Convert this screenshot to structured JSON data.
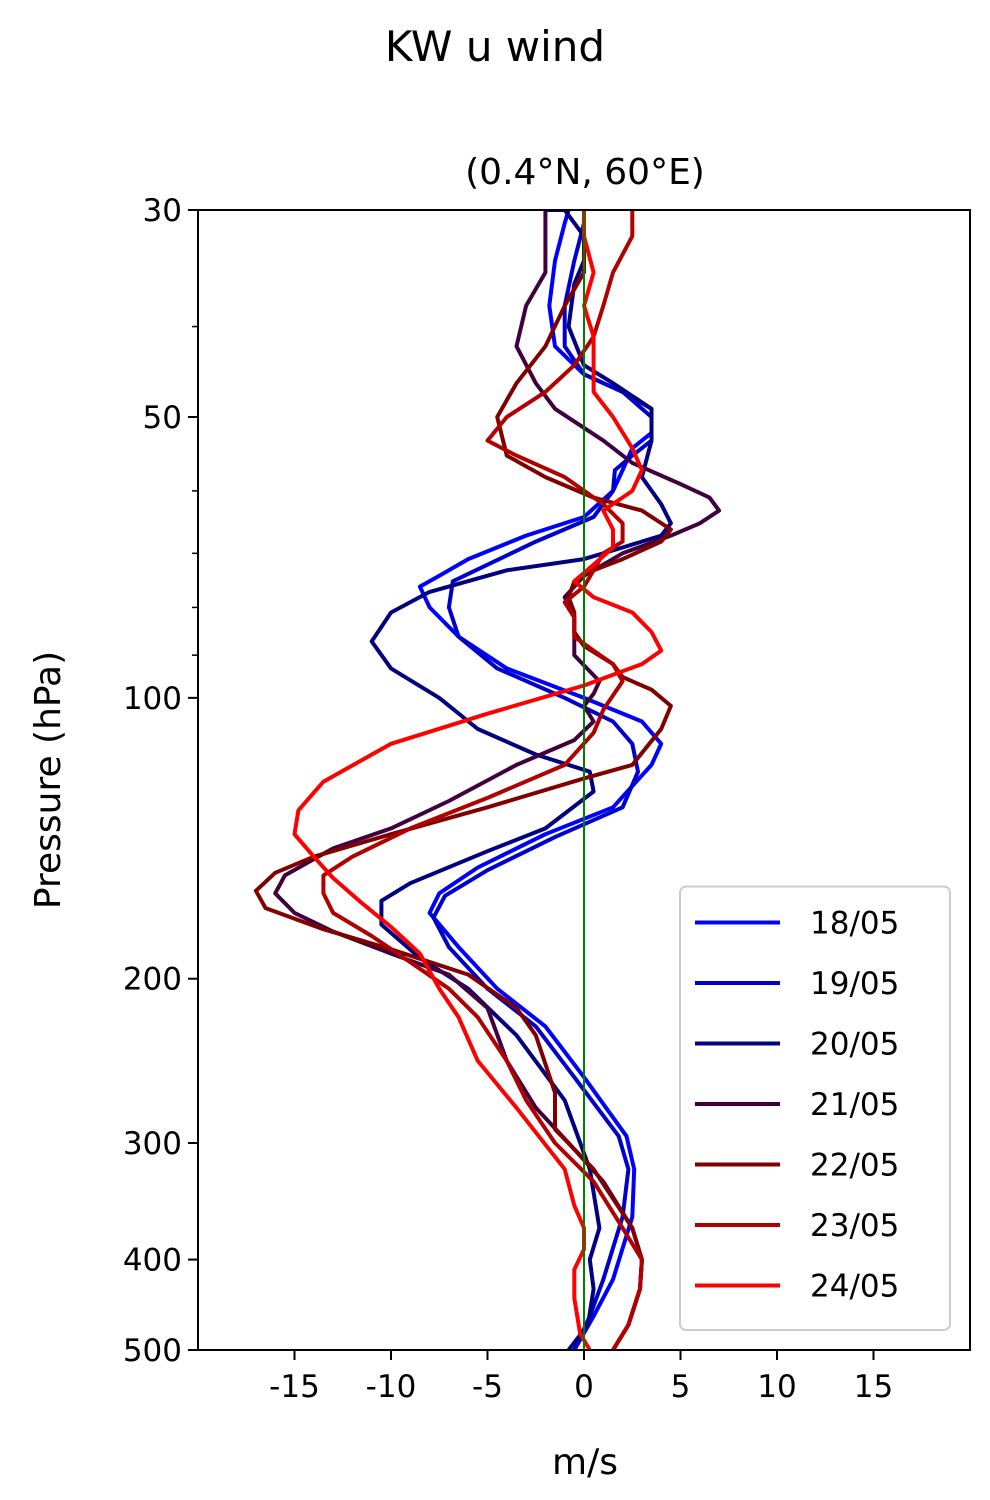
{
  "figure": {
    "title": "KW u wind"
  },
  "chart_data": {
    "type": "line",
    "title": "(0.4°N, 60°E)",
    "xlabel": "m/s",
    "ylabel": "Pressure (hPa)",
    "xlim": [
      -20,
      20
    ],
    "ylim": [
      500,
      30
    ],
    "yscale": "log",
    "x_ticks": [
      -15,
      -10,
      -5,
      0,
      5,
      10,
      15
    ],
    "x_tick_labels": [
      "-15",
      "-10",
      "-5",
      "0",
      "5",
      "10",
      "15"
    ],
    "y_ticks": [
      30,
      50,
      100,
      200,
      300,
      400,
      500
    ],
    "y_tick_labels": [
      "30",
      "50",
      "100",
      "200",
      "300",
      "400",
      "500"
    ],
    "y_minor_ticks": [
      40,
      60,
      70,
      80,
      90
    ],
    "zero_line": {
      "x": 0,
      "color": "#008000"
    },
    "legend_position": "lower-right",
    "grid": false,
    "series": [
      {
        "name": "18/05",
        "color": "#0000ff",
        "points": [
          [
            -0.5,
            500
          ],
          [
            0.5,
            460
          ],
          [
            1.5,
            420
          ],
          [
            2.5,
            360
          ],
          [
            2.6,
            320
          ],
          [
            2.2,
            295
          ],
          [
            0,
            255
          ],
          [
            -2,
            225
          ],
          [
            -4.5,
            205
          ],
          [
            -6.5,
            185
          ],
          [
            -8,
            170
          ],
          [
            -7.5,
            162
          ],
          [
            -5.5,
            152
          ],
          [
            -2,
            140
          ],
          [
            1.5,
            131
          ],
          [
            3.5,
            118
          ],
          [
            4,
            112
          ],
          [
            3,
            106
          ],
          [
            0,
            100
          ],
          [
            -4,
            93
          ],
          [
            -6.5,
            86
          ],
          [
            -8,
            80
          ],
          [
            -8.5,
            76
          ],
          [
            -7.5,
            74
          ],
          [
            -6,
            71
          ],
          [
            -3,
            67
          ],
          [
            0,
            64
          ],
          [
            1.5,
            60
          ],
          [
            2,
            57
          ],
          [
            2.5,
            54
          ],
          [
            3.5,
            52
          ],
          [
            3.5,
            49
          ],
          [
            2,
            47
          ],
          [
            0,
            45
          ],
          [
            -1.5,
            42
          ],
          [
            -1.8,
            38
          ],
          [
            -1.5,
            34
          ],
          [
            -1,
            31
          ],
          [
            -0.8,
            30
          ]
        ]
      },
      {
        "name": "19/05",
        "color": "#0000cc",
        "points": [
          [
            -0.5,
            500
          ],
          [
            0.3,
            460
          ],
          [
            1,
            420
          ],
          [
            2,
            360
          ],
          [
            2.3,
            320
          ],
          [
            1.8,
            295
          ],
          [
            -0.5,
            255
          ],
          [
            -2.5,
            225
          ],
          [
            -5,
            205
          ],
          [
            -7,
            185
          ],
          [
            -7.8,
            172
          ],
          [
            -7.2,
            163
          ],
          [
            -5,
            153
          ],
          [
            -1.5,
            141
          ],
          [
            2,
            131
          ],
          [
            2.8,
            120
          ],
          [
            2.5,
            112
          ],
          [
            1.5,
            106
          ],
          [
            -1,
            100
          ],
          [
            -4.5,
            93
          ],
          [
            -6.5,
            86
          ],
          [
            -7,
            80
          ],
          [
            -6.8,
            75
          ],
          [
            -5,
            72
          ],
          [
            -2.5,
            68
          ],
          [
            0.5,
            64
          ],
          [
            1.5,
            60
          ],
          [
            1.6,
            57
          ],
          [
            2.5,
            55
          ],
          [
            3.5,
            53
          ],
          [
            3.5,
            50
          ],
          [
            2,
            47
          ],
          [
            0,
            45
          ],
          [
            -1,
            42
          ],
          [
            -1,
            38
          ],
          [
            -0.5,
            34
          ],
          [
            0,
            31
          ],
          [
            0,
            30
          ]
        ]
      },
      {
        "name": "20/05",
        "color": "#000080",
        "points": [
          [
            -0.8,
            500
          ],
          [
            0.2,
            470
          ],
          [
            0.5,
            430
          ],
          [
            0.3,
            400
          ],
          [
            0.8,
            370
          ],
          [
            0.3,
            320
          ],
          [
            -1,
            270
          ],
          [
            -3.5,
            230
          ],
          [
            -6,
            205
          ],
          [
            -8.5,
            190
          ],
          [
            -10.5,
            175
          ],
          [
            -10.5,
            165
          ],
          [
            -9,
            158
          ],
          [
            -5,
            146
          ],
          [
            -2,
            138
          ],
          [
            0.5,
            126
          ],
          [
            0.3,
            120
          ],
          [
            -2.5,
            115
          ],
          [
            -5.5,
            108
          ],
          [
            -7.5,
            100
          ],
          [
            -10,
            93
          ],
          [
            -11,
            87
          ],
          [
            -10,
            81
          ],
          [
            -8,
            77
          ],
          [
            -4,
            73
          ],
          [
            0,
            71
          ],
          [
            2,
            69
          ],
          [
            4,
            67
          ],
          [
            4.5,
            65
          ],
          [
            4,
            62
          ],
          [
            3,
            58
          ],
          [
            3.5,
            53
          ],
          [
            3.5,
            49
          ],
          [
            1.5,
            46
          ],
          [
            0,
            44
          ],
          [
            -0.8,
            40
          ],
          [
            -0.5,
            36
          ],
          [
            0,
            34
          ],
          [
            0,
            32
          ],
          [
            -1,
            30
          ],
          [
            -2,
            30
          ]
        ]
      },
      {
        "name": "21/05",
        "color": "#400040",
        "points": [
          [
            1.5,
            500
          ],
          [
            2.3,
            470
          ],
          [
            2.9,
            430
          ],
          [
            3,
            400
          ],
          [
            2.5,
            370
          ],
          [
            1,
            330
          ],
          [
            -0.8,
            300
          ],
          [
            -2.5,
            275
          ],
          [
            -4,
            245
          ],
          [
            -5,
            215
          ],
          [
            -7,
            198
          ],
          [
            -10,
            188
          ],
          [
            -13,
            178
          ],
          [
            -15,
            170
          ],
          [
            -16,
            162
          ],
          [
            -15.5,
            155
          ],
          [
            -13,
            145
          ],
          [
            -10,
            138
          ],
          [
            -7,
            129
          ],
          [
            -3.5,
            118
          ],
          [
            -0.5,
            111
          ],
          [
            0.5,
            106
          ],
          [
            0,
            102
          ],
          [
            0.5,
            99
          ],
          [
            0.8,
            96
          ],
          [
            -0.5,
            90
          ],
          [
            -0.5,
            82
          ],
          [
            -1,
            78
          ],
          [
            0,
            74
          ],
          [
            2,
            70
          ],
          [
            4.5,
            67
          ],
          [
            6,
            65
          ],
          [
            7,
            63
          ],
          [
            6.5,
            61
          ],
          [
            5,
            59
          ],
          [
            2.5,
            56
          ],
          [
            1,
            53
          ],
          [
            -1.5,
            49
          ],
          [
            -2.5,
            46
          ],
          [
            -3.5,
            42
          ],
          [
            -3,
            38
          ],
          [
            -2,
            35
          ],
          [
            -2,
            31
          ],
          [
            -2,
            30
          ]
        ]
      },
      {
        "name": "22/05",
        "color": "#800000",
        "points": [
          [
            1.5,
            500
          ],
          [
            2.3,
            470
          ],
          [
            2.9,
            430
          ],
          [
            3,
            400
          ],
          [
            2.5,
            370
          ],
          [
            0.5,
            320
          ],
          [
            -1.5,
            290
          ],
          [
            -1.5,
            265
          ],
          [
            -2.5,
            230
          ],
          [
            -3.5,
            215
          ],
          [
            -6,
            198
          ],
          [
            -10,
            186
          ],
          [
            -13.5,
            177
          ],
          [
            -16.5,
            168
          ],
          [
            -17,
            161
          ],
          [
            -16,
            154
          ],
          [
            -14,
            148
          ],
          [
            -10,
            140
          ],
          [
            -5,
            131
          ],
          [
            0,
            122
          ],
          [
            2.5,
            118
          ],
          [
            4,
            108
          ],
          [
            4.5,
            102
          ],
          [
            3.5,
            98
          ],
          [
            2,
            95
          ],
          [
            1.5,
            92
          ],
          [
            0,
            88
          ],
          [
            -0.5,
            85
          ],
          [
            -0.5,
            81
          ],
          [
            -0.8,
            78
          ],
          [
            -0.5,
            75
          ],
          [
            0.5,
            73
          ],
          [
            2,
            71
          ],
          [
            4,
            68
          ],
          [
            4.5,
            66
          ],
          [
            3,
            63
          ],
          [
            0.5,
            61
          ],
          [
            -2,
            58
          ],
          [
            -4,
            55
          ],
          [
            -4.5,
            50
          ],
          [
            -3.5,
            46
          ],
          [
            -2,
            42
          ],
          [
            -1,
            38
          ],
          [
            0,
            35
          ],
          [
            0,
            32
          ],
          [
            0,
            30
          ]
        ]
      },
      {
        "name": "23/05",
        "color": "#b00000",
        "points": [
          [
            1.5,
            500
          ],
          [
            2.3,
            470
          ],
          [
            2.9,
            430
          ],
          [
            3,
            400
          ],
          [
            2,
            370
          ],
          [
            0.5,
            330
          ],
          [
            -1.5,
            300
          ],
          [
            -3,
            270
          ],
          [
            -4,
            245
          ],
          [
            -5.5,
            220
          ],
          [
            -7,
            205
          ],
          [
            -9,
            192
          ],
          [
            -11,
            180
          ],
          [
            -13,
            170
          ],
          [
            -13.5,
            162
          ],
          [
            -13.5,
            155
          ],
          [
            -12,
            148
          ],
          [
            -9,
            138
          ],
          [
            -5,
            128
          ],
          [
            -1,
            118
          ],
          [
            0.5,
            109
          ],
          [
            1,
            103
          ],
          [
            2,
            96
          ],
          [
            1.5,
            92
          ],
          [
            0.5,
            89
          ],
          [
            -0.5,
            86
          ],
          [
            -0.5,
            82
          ],
          [
            -1,
            79
          ],
          [
            0,
            76
          ],
          [
            0.5,
            73
          ],
          [
            1,
            70
          ],
          [
            2,
            68
          ],
          [
            2,
            65
          ],
          [
            1,
            62
          ],
          [
            -1,
            58
          ],
          [
            -3.5,
            55
          ],
          [
            -5,
            53
          ],
          [
            -4,
            50
          ],
          [
            -2,
            47
          ],
          [
            -0.5,
            44
          ],
          [
            0.5,
            41
          ],
          [
            1,
            38
          ],
          [
            1.5,
            35
          ],
          [
            2.5,
            32
          ],
          [
            2.5,
            30
          ]
        ]
      },
      {
        "name": "24/05",
        "color": "#ff0000",
        "points": [
          [
            0.3,
            500
          ],
          [
            -0.2,
            480
          ],
          [
            -0.5,
            440
          ],
          [
            -0.5,
            410
          ],
          [
            0,
            390
          ],
          [
            0,
            370
          ],
          [
            -0.5,
            350
          ],
          [
            -1,
            320
          ],
          [
            -3.5,
            275
          ],
          [
            -5.5,
            245
          ],
          [
            -6.5,
            220
          ],
          [
            -7.5,
            205
          ],
          [
            -8.5,
            188
          ],
          [
            -10,
            176
          ],
          [
            -11.5,
            166
          ],
          [
            -13,
            156
          ],
          [
            -14,
            148
          ],
          [
            -15,
            140
          ],
          [
            -14.8,
            132
          ],
          [
            -13.5,
            123
          ],
          [
            -10,
            112
          ],
          [
            -5,
            104
          ],
          [
            0,
            97
          ],
          [
            3,
            92
          ],
          [
            4,
            89
          ],
          [
            3.5,
            85
          ],
          [
            2.5,
            81
          ],
          [
            0.5,
            78
          ],
          [
            -0.5,
            75
          ],
          [
            0.5,
            72
          ],
          [
            1.5,
            69
          ],
          [
            1.5,
            66
          ],
          [
            1,
            63
          ],
          [
            2.5,
            60
          ],
          [
            3,
            57
          ],
          [
            2.5,
            54
          ],
          [
            1.5,
            50
          ],
          [
            0.5,
            47
          ],
          [
            0.5,
            44
          ],
          [
            0.5,
            41
          ],
          [
            0,
            38
          ],
          [
            0.5,
            35
          ],
          [
            0,
            32
          ],
          [
            0,
            30
          ]
        ]
      }
    ]
  }
}
